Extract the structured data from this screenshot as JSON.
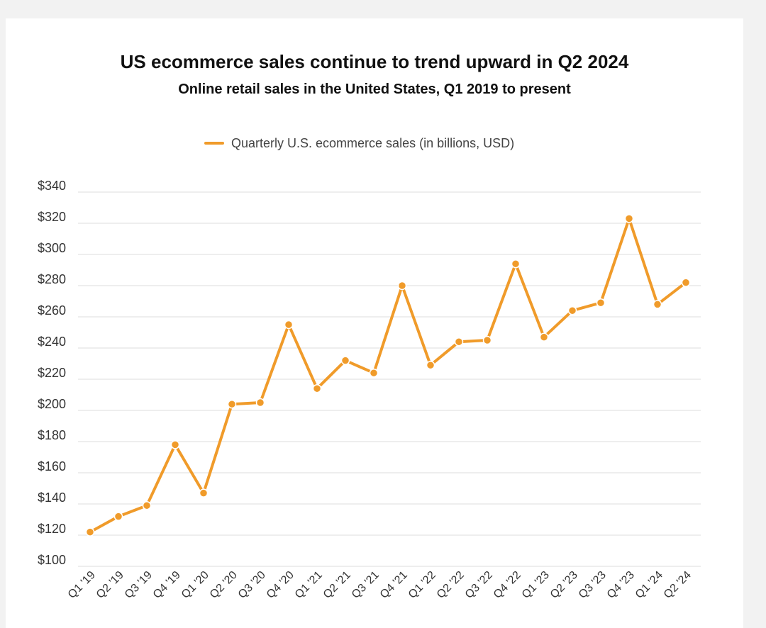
{
  "colors": {
    "series": "#F09B2A",
    "grid": "#dddddd",
    "axis_text": "#333333",
    "background": "#ffffff"
  },
  "chart_data": {
    "type": "line",
    "title": "US ecommerce sales continue to trend upward in Q2 2024",
    "subtitle": "Online retail sales in the United States, Q1 2019 to present",
    "xlabel": "",
    "ylabel": "",
    "ylim": [
      100,
      340
    ],
    "ytick_step": 20,
    "ytick_prefix": "$",
    "grid": true,
    "legend_position": "top-center",
    "categories": [
      "Q1 '19",
      "Q2 '19",
      "Q3 '19",
      "Q4 '19",
      "Q1 '20",
      "Q2 '20",
      "Q3 '20",
      "Q4 '20",
      "Q1 '21",
      "Q2 '21",
      "Q3 '21",
      "Q4 '21",
      "Q1 '22",
      "Q2 '22",
      "Q3 '22",
      "Q4 '22",
      "Q1 '23",
      "Q2 '23",
      "Q3 '23",
      "Q4 '23",
      "Q1 '24",
      "Q2 '24"
    ],
    "series": [
      {
        "name": "Quarterly U.S. ecommerce sales (in billions, USD)",
        "values": [
          122,
          132,
          139,
          178,
          147,
          204,
          205,
          255,
          214,
          232,
          224,
          280,
          229,
          244,
          245,
          294,
          247,
          264,
          269,
          323,
          268,
          282
        ]
      }
    ]
  }
}
